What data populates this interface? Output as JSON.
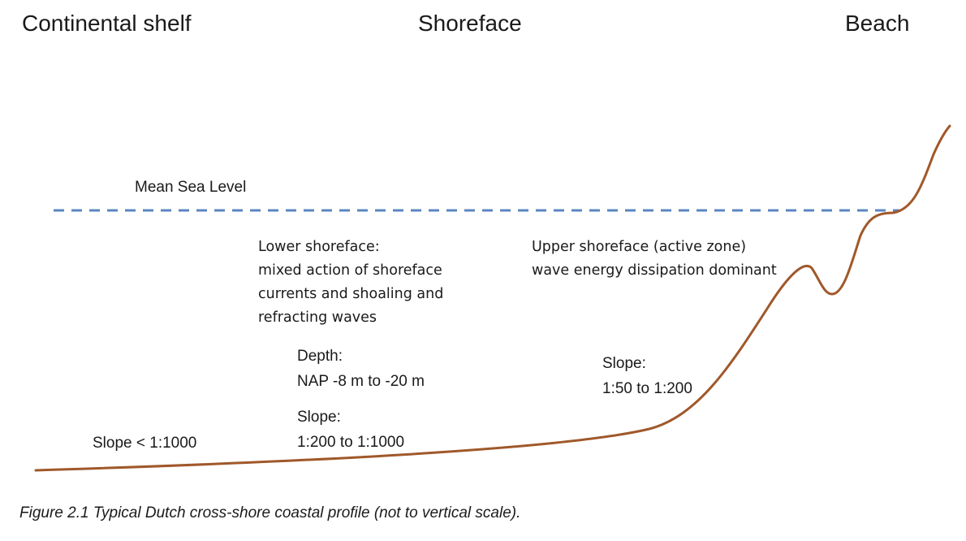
{
  "zones": {
    "continental_shelf": "Continental shelf",
    "shoreface": "Shoreface",
    "beach": "Beach"
  },
  "mean_sea_level": "Mean Sea Level",
  "lower_shoreface": {
    "lines": [
      "Lower shoreface:",
      "mixed action of shoreface",
      "currents and shoaling and",
      "refracting waves"
    ]
  },
  "upper_shoreface": {
    "lines": [
      "Upper shoreface (active zone)",
      "wave energy dissipation dominant"
    ]
  },
  "depth": {
    "label": "Depth:",
    "value": "NAP -8 m to -20 m"
  },
  "slope_lower": {
    "label": "Slope:",
    "value": "1:200 to 1:1000"
  },
  "slope_upper": {
    "label": "Slope:",
    "value": "1:50 to 1:200"
  },
  "slope_shelf": "Slope < 1:1000",
  "caption": "Figure 2.1   Typical Dutch cross-shore coastal profile (not to vertical scale).",
  "colors": {
    "profile": "#a0582a",
    "sea_level": "#5b86c0",
    "text": "#1a1a1a"
  }
}
